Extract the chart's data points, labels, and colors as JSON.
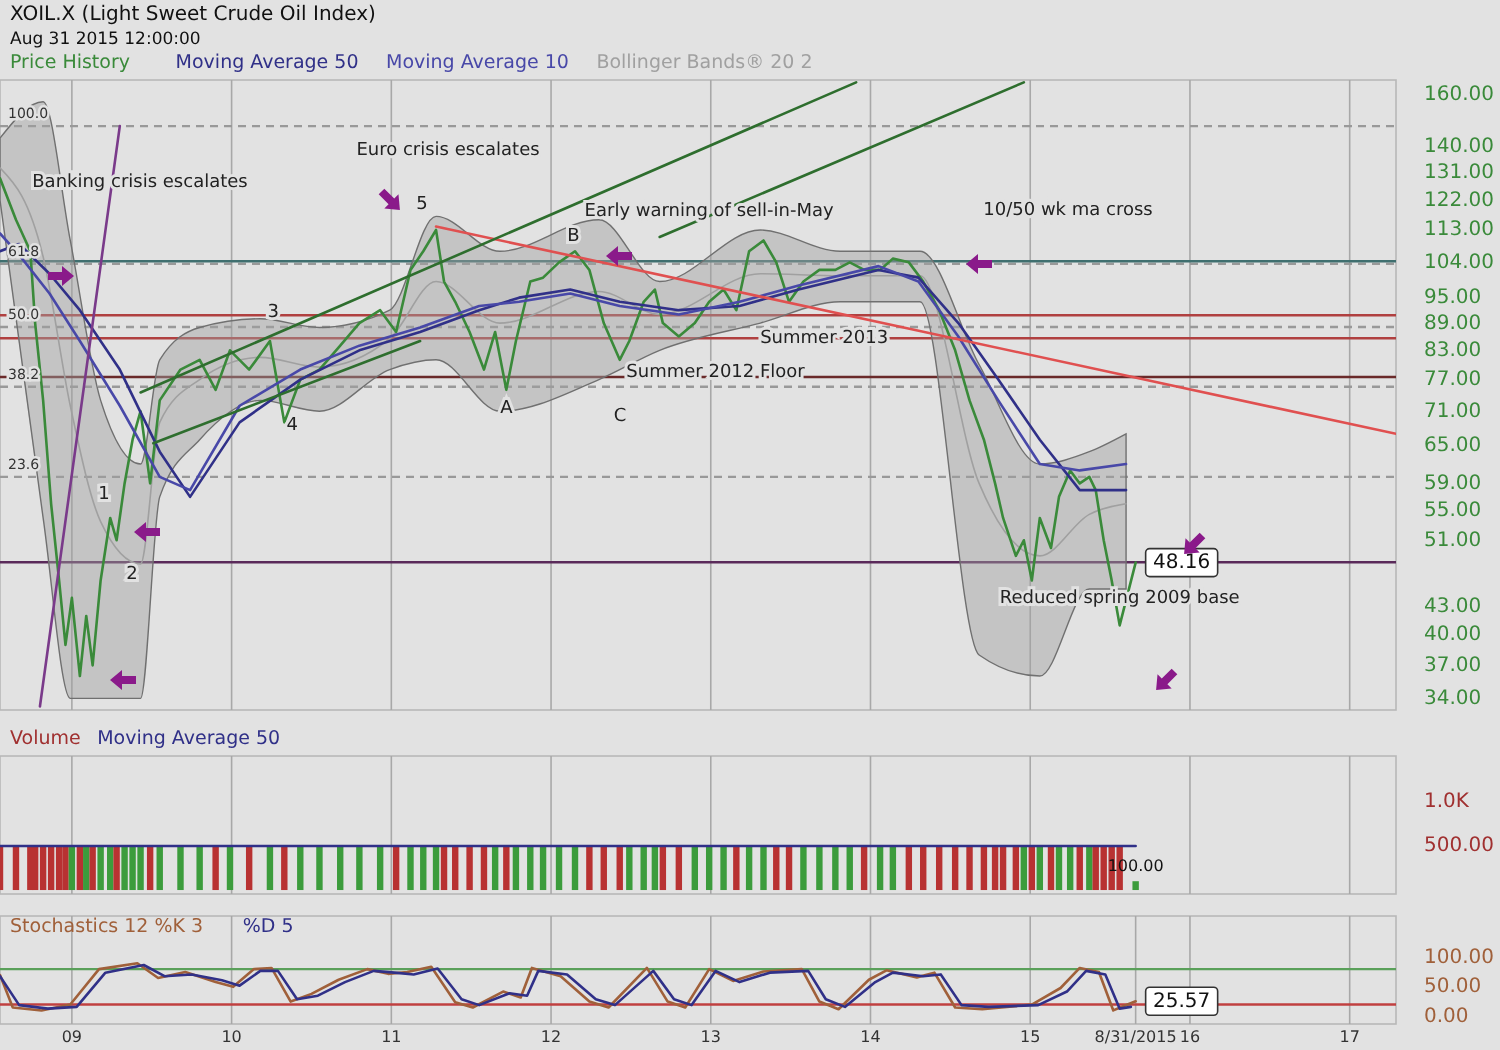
{
  "chart_data": [
    {
      "type": "line",
      "title": "XOIL.X (Light Sweet Crude Oil Index)",
      "subtitle": "Aug 31 2015 12:00:00",
      "log": "y",
      "grid": "x",
      "legend": "top left",
      "tick_labels": "y",
      "xlim": [
        2008.55,
        2017.29
      ],
      "xticks": [
        2009,
        2010,
        2011,
        2012,
        2013,
        2014,
        2015,
        2016,
        2017
      ],
      "ylim": [
        33,
        166
      ],
      "yticks": [
        {
          "value": 34,
          "label": "34.00"
        },
        {
          "value": 37,
          "label": "37.00"
        },
        {
          "value": 40,
          "label": "40.00"
        },
        {
          "value": 43,
          "label": "43.00"
        },
        {
          "value": 51,
          "label": "51.00"
        },
        {
          "value": 55,
          "label": "55.00"
        },
        {
          "value": 59,
          "label": "59.00"
        },
        {
          "value": 65,
          "label": "65.00"
        },
        {
          "value": 71,
          "label": "71.00"
        },
        {
          "value": 77,
          "label": "77.00"
        },
        {
          "value": 83,
          "label": "83.00"
        },
        {
          "value": 89,
          "label": "89.00"
        },
        {
          "value": 95,
          "label": "95.00"
        },
        {
          "value": 104,
          "label": "104.00"
        },
        {
          "value": 113,
          "label": "113.00"
        },
        {
          "value": 122,
          "label": "122.00"
        },
        {
          "value": 131,
          "label": "131.00"
        },
        {
          "value": 140,
          "label": "140.00"
        },
        {
          "value": 160,
          "label": "160.00"
        }
      ],
      "series": [
        {
          "name": "Price History",
          "color": "#3a8a3a",
          "x": [
            2008.55,
            2008.65,
            2008.74,
            2008.77,
            2008.82,
            2008.87,
            2008.92,
            2008.96,
            2009.0,
            2009.05,
            2009.09,
            2009.13,
            2009.18,
            2009.24,
            2009.28,
            2009.33,
            2009.38,
            2009.43,
            2009.49,
            2009.55,
            2009.68,
            2009.8,
            2009.9,
            2009.99,
            2010.11,
            2010.24,
            2010.33,
            2010.43,
            2010.55,
            2010.68,
            2010.8,
            2010.93,
            2011.03,
            2011.12,
            2011.2,
            2011.28,
            2011.33,
            2011.4,
            2011.49,
            2011.58,
            2011.65,
            2011.72,
            2011.78,
            2011.87,
            2011.95,
            2012.05,
            2012.15,
            2012.24,
            2012.33,
            2012.43,
            2012.49,
            2012.58,
            2012.65,
            2012.7,
            2012.8,
            2012.9,
            2012.99,
            2013.08,
            2013.16,
            2013.24,
            2013.33,
            2013.41,
            2013.49,
            2013.58,
            2013.68,
            2013.78,
            2013.87,
            2013.96,
            2014.06,
            2014.14,
            2014.24,
            2014.33,
            2014.43,
            2014.53,
            2014.62,
            2014.71,
            2014.78,
            2014.83,
            2014.91,
            2014.96,
            2015.01,
            2015.06,
            2015.13,
            2015.18,
            2015.25,
            2015.31,
            2015.37,
            2015.41,
            2015.46,
            2015.51,
            2015.56,
            2015.66
          ],
          "values": [
            129,
            116,
            107,
            89,
            73,
            56,
            46,
            39,
            44,
            36,
            42,
            37,
            46,
            54,
            51,
            59,
            66,
            71,
            59,
            73,
            79,
            81,
            75,
            83,
            79,
            85,
            69,
            77,
            79,
            84,
            89,
            92,
            87,
            102,
            107,
            113,
            99,
            94,
            87,
            79,
            87,
            75,
            85,
            99,
            100,
            104,
            107,
            102,
            89,
            81,
            85,
            94,
            97,
            89,
            86,
            89,
            94,
            97,
            92,
            107,
            110,
            104,
            94,
            99,
            102,
            102,
            104,
            102,
            102,
            105,
            104,
            99,
            92,
            83,
            73,
            66,
            59,
            54,
            49,
            51,
            46,
            54,
            50,
            57,
            61,
            59,
            60,
            58,
            51,
            46,
            41,
            48.16
          ],
          "value_labels": [
            null,
            null,
            null,
            null,
            null,
            null,
            null,
            null,
            null,
            null,
            null,
            null,
            null,
            null,
            null,
            null,
            null,
            null,
            null,
            null,
            null,
            null,
            null,
            null,
            null,
            null,
            null,
            null,
            null,
            null,
            null,
            null,
            null,
            null,
            null,
            null,
            null,
            null,
            null,
            null,
            null,
            null,
            null,
            null,
            null,
            null,
            null,
            null,
            null,
            null,
            null,
            null,
            null,
            null,
            null,
            null,
            null,
            null,
            null,
            null,
            null,
            null,
            null,
            null,
            null,
            null,
            null,
            null,
            null,
            null,
            null,
            null,
            null,
            null,
            null,
            null,
            null,
            null,
            null,
            null,
            null,
            null,
            null,
            null,
            null,
            null,
            null,
            null,
            null,
            null,
            null,
            "48.16"
          ]
        },
        {
          "name": "Moving Average 50",
          "color": "#303088",
          "x": [
            2008.55,
            2008.67,
            2008.86,
            2009.05,
            2009.3,
            2009.55,
            2009.74,
            2010.05,
            2010.43,
            2010.8,
            2011.18,
            2011.55,
            2011.8,
            2012.12,
            2012.43,
            2012.8,
            2013.18,
            2013.55,
            2014.05,
            2014.3,
            2014.55,
            2014.8,
            2015.06,
            2015.31,
            2015.6
          ],
          "values": [
            107,
            109,
            101,
            92,
            79,
            64,
            57,
            69,
            77,
            83,
            87,
            92,
            95,
            97,
            94,
            92,
            93,
            97,
            102,
            100,
            89,
            77,
            66,
            58,
            58
          ]
        },
        {
          "name": "Moving Average 10",
          "color": "#4848a8",
          "x": [
            2008.55,
            2008.67,
            2008.86,
            2009.05,
            2009.3,
            2009.55,
            2009.74,
            2010.05,
            2010.43,
            2010.8,
            2011.18,
            2011.55,
            2011.8,
            2012.12,
            2012.43,
            2012.8,
            2013.18,
            2013.55,
            2014.05,
            2014.3,
            2014.55,
            2014.8,
            2015.06,
            2015.31,
            2015.6
          ],
          "values": [
            112,
            106,
            96,
            85,
            72,
            60,
            58,
            72,
            79,
            84,
            88,
            93,
            94,
            96,
            93,
            91,
            94,
            98,
            103,
            99,
            86,
            73,
            62,
            61,
            62
          ]
        },
        {
          "name": "Bollinger Bands® 20 2",
          "color": "#a0a0a0",
          "values": [
            132.5,
            105.5,
            72,
            53.5,
            48,
            69,
            77,
            81.5,
            79.5,
            85.5,
            99,
            89,
            96.5,
            91,
            101,
            100.5,
            100.5,
            59,
            49,
            54.5,
            56
          ],
          "x": [
            2008.55,
            2008.82,
            2008.99,
            2009.18,
            2009.43,
            2009.55,
            2009.8,
            2010.18,
            2010.55,
            2010.99,
            2011.28,
            2011.68,
            2012.3,
            2012.68,
            2013.31,
            2013.81,
            2014.31,
            2014.68,
            2015.06,
            2015.37,
            2015.6
          ],
          "upper": [
            143,
            157,
            110,
            73,
            62,
            81,
            88,
            90,
            88,
            92,
            117,
            107,
            116,
            99,
            113,
            107,
            107,
            80,
            62,
            64,
            67
          ],
          "lower": [
            122,
            54,
            34,
            34,
            34,
            57,
            66,
            73,
            71,
            79,
            81,
            71,
            77,
            83,
            89,
            94,
            94,
            38,
            36,
            45,
            45
          ]
        },
        {
          "type": "line",
          "color": "#e05050",
          "x": [
            2011.28,
            2017.29
          ],
          "values": [
            114,
            67
          ]
        },
        {
          "type": "line",
          "color": "#2e6e2e",
          "x": [
            2009.43,
            2013.91
          ],
          "values": [
            74.5,
            165
          ]
        },
        {
          "type": "line",
          "color": "#2e6e2e",
          "x": [
            2009.51,
            2011.18
          ],
          "values": [
            65.4,
            85
          ]
        },
        {
          "type": "line",
          "color": "#2e6e2e",
          "x": [
            2012.68,
            2014.96
          ],
          "values": [
            111,
            165
          ]
        },
        {
          "type": "line",
          "color": "#7a3a8a",
          "x": [
            2008.8,
            2009.3
          ],
          "values": [
            33.3,
            147.5
          ]
        }
      ],
      "ref_lines": [
        {
          "axis": "y",
          "value": 147.5,
          "color": "#999999",
          "line_style": "dashed"
        },
        {
          "axis": "y",
          "value": 103.6,
          "color": "#999999",
          "line_style": "dashed"
        },
        {
          "axis": "y",
          "value": 88.1,
          "color": "#999999",
          "line_style": "dashed"
        },
        {
          "axis": "y",
          "value": 75.6,
          "color": "#999999",
          "line_style": "dashed"
        },
        {
          "axis": "y",
          "value": 60,
          "color": "#999999",
          "line_style": "dashed"
        },
        {
          "axis": "y",
          "value": 104.3,
          "color": "#3f6f6f",
          "line_style": "solid"
        },
        {
          "axis": "y",
          "value": 90.8,
          "color": "#b04040",
          "line_style": "solid"
        },
        {
          "axis": "y",
          "value": 85.6,
          "color": "#b04040",
          "line_style": "solid"
        },
        {
          "axis": "y",
          "value": 77.5,
          "color": "#6a2a2a",
          "line_style": "solid"
        },
        {
          "axis": "y",
          "value": 48.2,
          "color": "#5a2a5a",
          "line_style": "solid"
        }
      ],
      "annotations": [
        "Banking crisis escalates",
        "Euro crisis escalates",
        "10/50 wk ma cross",
        "5",
        "C",
        "1",
        "2",
        {
          "text": "100.0",
          "x": 2008.55,
          "y": 147.5
        },
        {
          "text": "61.8",
          "x": 2008.55,
          "y": 103.6
        },
        {
          "text": "50.0",
          "x": 2008.55,
          "y": 88.1
        },
        {
          "text": "38.2",
          "x": 2008.55,
          "y": 75.6
        },
        {
          "text": "23.6",
          "x": 2008.55,
          "y": 60
        },
        {
          "text": "Early warning of sell-in-May",
          "x": 2012.99,
          "y": 118.6
        },
        {
          "text": "Summer 2012 Floor",
          "x": 2013.03,
          "y": 78.5
        },
        {
          "text": "Summer 2013",
          "x": 2013.71,
          "y": 85.6
        },
        {
          "text": "Reduced spring 2009 base",
          "x": 2015.56,
          "y": 44
        },
        {
          "text": "B",
          "x": 2012.14,
          "y": 111.3
        },
        {
          "text": "3",
          "x": 2010.26,
          "y": 91.6
        },
        {
          "text": "4",
          "x": 2010.38,
          "y": 68.6
        },
        {
          "text": "A",
          "x": 2011.72,
          "y": 71.5
        }
      ]
    },
    {
      "type": "bar",
      "grid": "x",
      "legend": "top left",
      "tick_labels": "y",
      "xlim": [
        2008.55,
        2017.29
      ],
      "xticks": [
        2009,
        2010,
        2011,
        2012,
        2013,
        2014,
        2015,
        2016,
        2017
      ],
      "ylim": [
        -45,
        1520
      ],
      "yticks": [
        {
          "value": 500,
          "label": "500.00"
        },
        {
          "value": 1000,
          "label": "1.0K"
        }
      ],
      "series": [
        {
          "name": "Volume",
          "color": "#a03030",
          "x": [
            2008.55,
            2008.65,
            2008.74,
            2008.77,
            2008.82,
            2008.87,
            2008.92,
            2008.96,
            2009.0,
            2009.05,
            2009.09,
            2009.13,
            2009.18,
            2009.24,
            2009.28,
            2009.33,
            2009.38,
            2009.43,
            2009.49,
            2009.55,
            2009.68,
            2009.8,
            2009.9,
            2009.99,
            2010.11,
            2010.24,
            2010.33,
            2010.43,
            2010.55,
            2010.68,
            2010.8,
            2010.93,
            2011.03,
            2011.12,
            2011.2,
            2011.28,
            2011.33,
            2011.4,
            2011.49,
            2011.58,
            2011.65,
            2011.72,
            2011.78,
            2011.87,
            2011.95,
            2012.05,
            2012.15,
            2012.24,
            2012.33,
            2012.43,
            2012.49,
            2012.58,
            2012.65,
            2012.7,
            2012.8,
            2012.9,
            2012.99,
            2013.08,
            2013.16,
            2013.24,
            2013.33,
            2013.41,
            2013.49,
            2013.58,
            2013.68,
            2013.78,
            2013.87,
            2013.96,
            2014.06,
            2014.14,
            2014.24,
            2014.33,
            2014.43,
            2014.53,
            2014.62,
            2014.71,
            2014.78,
            2014.83,
            2014.91,
            2014.96,
            2015.01,
            2015.06,
            2015.13,
            2015.18,
            2015.25,
            2015.31,
            2015.37,
            2015.41,
            2015.46,
            2015.51,
            2015.56,
            2015.66
          ],
          "values": [
            500,
            500,
            500,
            500,
            500,
            500,
            500,
            500,
            500,
            500,
            500,
            500,
            500,
            500,
            500,
            500,
            500,
            500,
            500,
            500,
            500,
            500,
            500,
            500,
            500,
            500,
            500,
            500,
            500,
            500,
            500,
            500,
            500,
            500,
            500,
            500,
            500,
            500,
            500,
            500,
            500,
            500,
            500,
            500,
            500,
            500,
            500,
            500,
            500,
            500,
            500,
            500,
            500,
            500,
            500,
            500,
            500,
            500,
            500,
            500,
            500,
            500,
            500,
            500,
            500,
            500,
            500,
            500,
            500,
            500,
            500,
            500,
            500,
            500,
            500,
            500,
            500,
            500,
            500,
            500,
            500,
            500,
            500,
            500,
            500,
            500,
            500,
            500,
            500,
            500,
            500,
            100
          ],
          "colors": [
            "#b83232",
            "#b83232",
            "#b83232",
            "#b83232",
            "#b83232",
            "#b83232",
            "#b83232",
            "#b83232",
            "#3c9c3c",
            "#b83232",
            "#3c9c3c",
            "#b83232",
            "#3c9c3c",
            "#3c9c3c",
            "#b83232",
            "#3c9c3c",
            "#3c9c3c",
            "#3c9c3c",
            "#b83232",
            "#3c9c3c",
            "#3c9c3c",
            "#3c9c3c",
            "#b83232",
            "#3c9c3c",
            "#b83232",
            "#3c9c3c",
            "#b83232",
            "#3c9c3c",
            "#3c9c3c",
            "#3c9c3c",
            "#3c9c3c",
            "#3c9c3c",
            "#b83232",
            "#3c9c3c",
            "#3c9c3c",
            "#3c9c3c",
            "#b83232",
            "#b83232",
            "#b83232",
            "#b83232",
            "#3c9c3c",
            "#b83232",
            "#3c9c3c",
            "#3c9c3c",
            "#3c9c3c",
            "#3c9c3c",
            "#3c9c3c",
            "#b83232",
            "#b83232",
            "#b83232",
            "#3c9c3c",
            "#3c9c3c",
            "#3c9c3c",
            "#b83232",
            "#b83232",
            "#3c9c3c",
            "#3c9c3c",
            "#3c9c3c",
            "#b83232",
            "#3c9c3c",
            "#3c9c3c",
            "#b83232",
            "#b83232",
            "#3c9c3c",
            "#3c9c3c",
            "#3c9c3c",
            "#3c9c3c",
            "#b83232",
            "#3c9c3c",
            "#3c9c3c",
            "#b83232",
            "#b83232",
            "#b83232",
            "#b83232",
            "#b83232",
            "#b83232",
            "#b83232",
            "#b83232",
            "#b83232",
            "#3c9c3c",
            "#b83232",
            "#3c9c3c",
            "#b83232",
            "#3c9c3c",
            "#3c9c3c",
            "#b83232",
            "#3c9c3c",
            "#b83232",
            "#b83232",
            "#b83232",
            "#b83232",
            "#3c9c3c"
          ],
          "value_labels": [
            null,
            null,
            null,
            null,
            null,
            null,
            null,
            null,
            null,
            null,
            null,
            null,
            null,
            null,
            null,
            null,
            null,
            null,
            null,
            null,
            null,
            null,
            null,
            null,
            null,
            null,
            null,
            null,
            null,
            null,
            null,
            null,
            null,
            null,
            null,
            null,
            null,
            null,
            null,
            null,
            null,
            null,
            null,
            null,
            null,
            null,
            null,
            null,
            null,
            null,
            null,
            null,
            null,
            null,
            null,
            null,
            null,
            null,
            null,
            null,
            null,
            null,
            null,
            null,
            null,
            null,
            null,
            null,
            null,
            null,
            null,
            null,
            null,
            null,
            null,
            null,
            null,
            null,
            null,
            null,
            null,
            null,
            null,
            null,
            null,
            null,
            null,
            null,
            null,
            null,
            null,
            "100.00"
          ]
        },
        {
          "name": "Moving Average 50",
          "type": "line",
          "color": "#303088",
          "x": [
            2008.55,
            2015.66
          ],
          "values": [
            500,
            500
          ]
        }
      ]
    },
    {
      "type": "line",
      "grid": "x",
      "legend": "top left",
      "xlim": [
        2008.55,
        2017.29
      ],
      "xticks": [
        {
          "value": 2009,
          "label": "09"
        },
        {
          "value": 2010,
          "label": "10"
        },
        {
          "value": 2011,
          "label": "11"
        },
        {
          "value": 2012,
          "label": "12"
        },
        {
          "value": 2013,
          "label": "13"
        },
        {
          "value": 2014,
          "label": "14"
        },
        {
          "value": 2015,
          "label": "15"
        },
        {
          "value": 2015.66,
          "label": "8/31/2015"
        },
        {
          "value": 2016,
          "label": "16"
        },
        {
          "value": 2017,
          "label": "17"
        }
      ],
      "ylim": [
        -13,
        170
      ],
      "yticks": [
        {
          "value": 0,
          "label": "0.00"
        },
        {
          "value": 50,
          "label": "50.00"
        },
        {
          "value": 100,
          "label": "100.00"
        }
      ],
      "ref_lines": [
        {
          "axis": "y",
          "value": 80,
          "color": "#5aa05a",
          "line_style": "solid"
        },
        {
          "axis": "y",
          "value": 20,
          "color": "#c04040",
          "line_style": "solid"
        }
      ],
      "series": [
        {
          "name": "Stochastics 12 %K 3",
          "color": "#a0603a",
          "x": [
            2008.55,
            2008.63,
            2008.81,
            2008.99,
            2009.17,
            2009.41,
            2009.54,
            2009.71,
            2009.9,
            2010.01,
            2010.14,
            2010.25,
            2010.37,
            2010.5,
            2010.67,
            2010.85,
            2010.98,
            2011.1,
            2011.25,
            2011.4,
            2011.51,
            2011.7,
            2011.81,
            2011.88,
            2012.06,
            2012.24,
            2012.36,
            2012.6,
            2012.73,
            2012.84,
            2012.99,
            2013.14,
            2013.33,
            2013.57,
            2013.68,
            2013.8,
            2013.99,
            2014.1,
            2014.29,
            2014.4,
            2014.53,
            2014.7,
            2015.01,
            2015.19,
            2015.31,
            2015.43,
            2015.52,
            2015.59,
            2015.66
          ],
          "values": [
            70,
            15,
            10,
            20,
            80,
            90,
            65,
            75,
            58,
            50,
            80,
            82,
            25,
            38,
            62,
            80,
            72,
            75,
            84,
            24,
            15,
            42,
            32,
            82,
            68,
            25,
            15,
            82,
            25,
            15,
            80,
            60,
            76,
            80,
            25,
            12,
            62,
            78,
            66,
            74,
            15,
            12,
            20,
            48,
            82,
            75,
            10,
            18,
            25.57
          ],
          "value_labels": [
            null,
            null,
            null,
            null,
            null,
            null,
            null,
            null,
            null,
            null,
            null,
            null,
            null,
            null,
            null,
            null,
            null,
            null,
            null,
            null,
            null,
            null,
            null,
            null,
            null,
            null,
            null,
            null,
            null,
            null,
            null,
            null,
            null,
            null,
            null,
            null,
            null,
            null,
            null,
            null,
            null,
            null,
            null,
            null,
            null,
            null,
            null,
            null,
            "25.57"
          ]
        },
        {
          "name": "%D 5",
          "color": "#303088",
          "x": [
            2008.55,
            2008.67,
            2008.85,
            2009.03,
            2009.21,
            2009.45,
            2009.58,
            2009.75,
            2009.94,
            2010.05,
            2010.18,
            2010.29,
            2010.41,
            2010.54,
            2010.71,
            2010.89,
            2011.02,
            2011.14,
            2011.29,
            2011.44,
            2011.55,
            2011.74,
            2011.85,
            2011.92,
            2012.1,
            2012.28,
            2012.4,
            2012.64,
            2012.77,
            2012.88,
            2013.03,
            2013.18,
            2013.37,
            2013.61,
            2013.72,
            2013.84,
            2014.03,
            2014.14,
            2014.33,
            2014.44,
            2014.57,
            2014.74,
            2015.05,
            2015.23,
            2015.35,
            2015.47,
            2015.56,
            2015.63
          ],
          "values": [
            68,
            19,
            13,
            16,
            74,
            87,
            68,
            71,
            61,
            52,
            77,
            77,
            29,
            35,
            58,
            77,
            74,
            71,
            81,
            29,
            19,
            39,
            35,
            77,
            71,
            29,
            19,
            77,
            29,
            19,
            77,
            58,
            74,
            77,
            29,
            16,
            58,
            74,
            68,
            71,
            19,
            16,
            19,
            42,
            77,
            71,
            13,
            16
          ]
        }
      ]
    }
  ]
}
